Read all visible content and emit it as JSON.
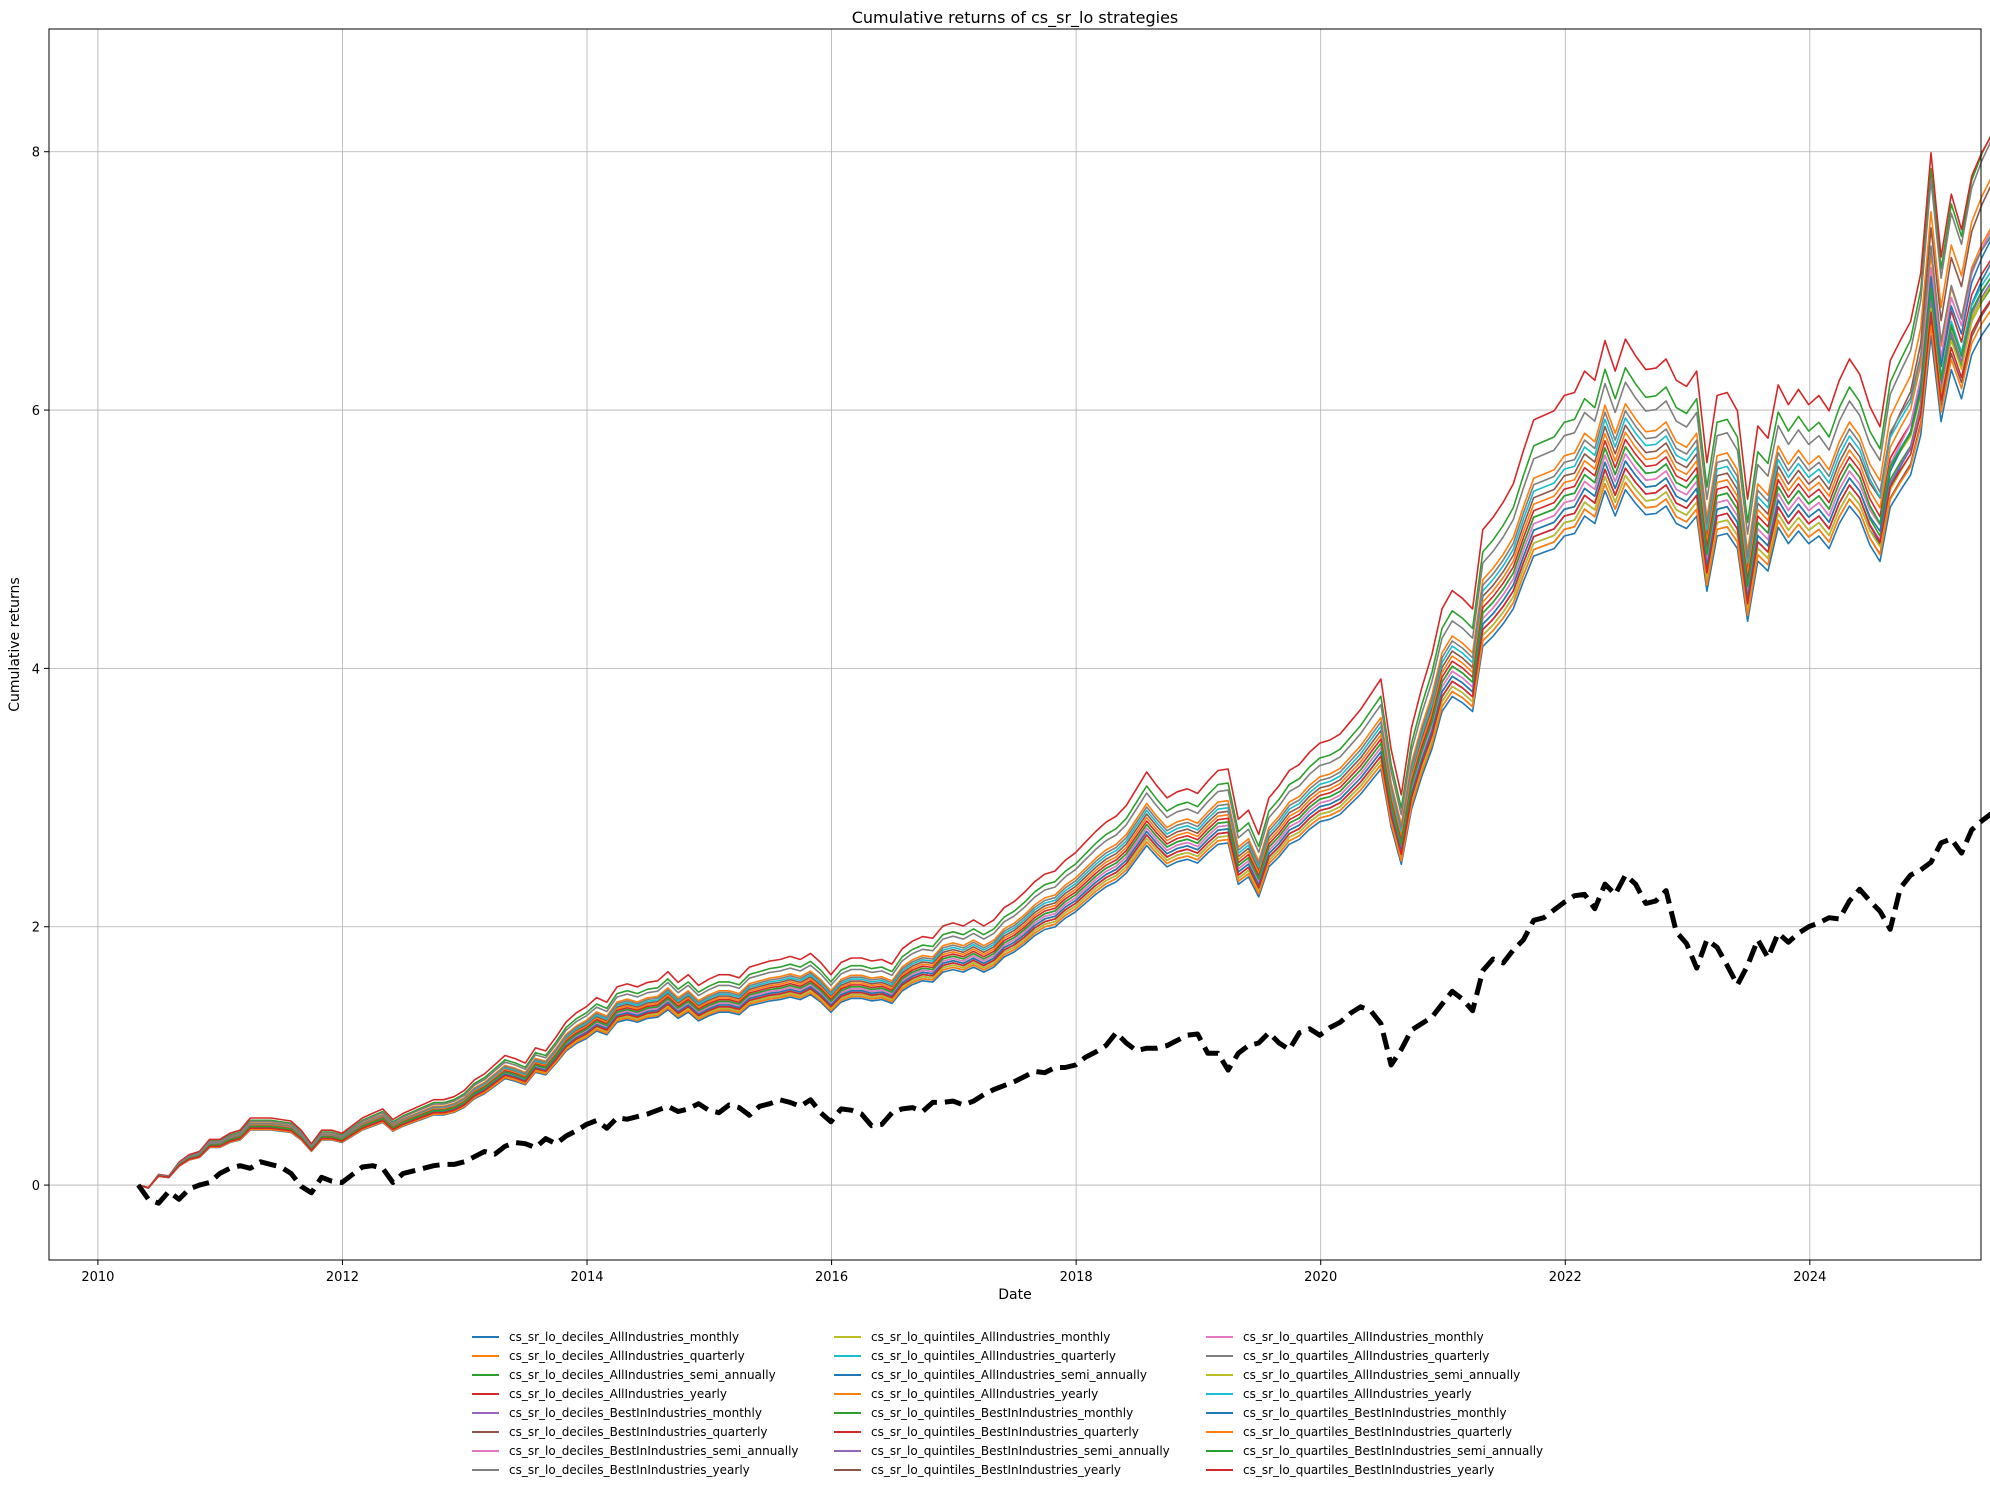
{
  "chart_data": {
    "type": "line",
    "title": "Cumulative returns of cs_sr_lo strategies",
    "xlabel": "Date",
    "ylabel": "Cumulative returns",
    "xlim": [
      2009.6,
      2025.4
    ],
    "ylim": [
      -0.58,
      8.95
    ],
    "xticks": [
      2010,
      2012,
      2014,
      2016,
      2018,
      2020,
      2022,
      2024
    ],
    "xtick_labels": [
      "2010",
      "2012",
      "2014",
      "2016",
      "2018",
      "2020",
      "2022",
      "2024"
    ],
    "yticks": [
      0,
      2,
      4,
      6,
      8
    ],
    "ytick_labels": [
      "0",
      "2",
      "4",
      "6",
      "8"
    ],
    "grid": true,
    "legend_position": "below plot, 3 columns",
    "x_start": 2010.33,
    "x_step": 0.0833,
    "base_curve": [
      0,
      -0.02,
      0.07,
      0.06,
      0.15,
      0.2,
      0.22,
      0.3,
      0.3,
      0.34,
      0.36,
      0.44,
      0.44,
      0.44,
      0.43,
      0.42,
      0.36,
      0.27,
      0.36,
      0.36,
      0.34,
      0.39,
      0.44,
      0.47,
      0.5,
      0.43,
      0.47,
      0.5,
      0.53,
      0.56,
      0.56,
      0.58,
      0.62,
      0.69,
      0.73,
      0.79,
      0.85,
      0.83,
      0.8,
      0.9,
      0.88,
      0.97,
      1.07,
      1.13,
      1.17,
      1.23,
      1.2,
      1.3,
      1.32,
      1.3,
      1.33,
      1.34,
      1.4,
      1.33,
      1.38,
      1.31,
      1.35,
      1.38,
      1.38,
      1.36,
      1.43,
      1.45,
      1.47,
      1.48,
      1.5,
      1.48,
      1.52,
      1.46,
      1.38,
      1.46,
      1.49,
      1.49,
      1.47,
      1.48,
      1.45,
      1.55,
      1.6,
      1.63,
      1.62,
      1.7,
      1.72,
      1.7,
      1.74,
      1.7,
      1.74,
      1.82,
      1.86,
      1.92,
      1.99,
      2.04,
      2.06,
      2.13,
      2.18,
      2.25,
      2.32,
      2.38,
      2.42,
      2.49,
      2.6,
      2.71,
      2.62,
      2.54,
      2.58,
      2.6,
      2.57,
      2.65,
      2.72,
      2.73,
      2.4,
      2.46,
      2.3,
      2.54,
      2.62,
      2.72,
      2.76,
      2.84,
      2.9,
      2.92,
      2.96,
      3.04,
      3.12,
      3.22,
      3.32,
      2.86,
      2.56,
      3.0,
      3.26,
      3.48,
      3.78,
      3.9,
      3.85,
      3.78,
      4.3,
      4.38,
      4.48,
      4.6,
      4.82,
      5.02,
      5.05,
      5.08,
      5.18,
      5.2,
      5.34,
      5.28,
      5.54,
      5.34,
      5.55,
      5.44,
      5.35,
      5.36,
      5.42,
      5.28,
      5.24,
      5.34,
      4.74,
      5.18,
      5.2,
      5.08,
      4.5,
      4.98,
      4.9,
      5.25,
      5.12,
      5.22,
      5.12,
      5.18,
      5.08,
      5.28,
      5.42,
      5.32,
      5.12,
      5.0,
      5.45,
      5.6,
      5.74,
      6.08,
      6.9,
      6.22,
      6.66,
      6.44,
      6.82,
      7.0,
      7.14,
      7.1,
      7.3,
      7.22,
      7.58,
      7.1,
      7.1
    ],
    "benchmark": {
      "name": "benchmark (black dashed)",
      "values": [
        0,
        -0.11,
        -0.14,
        -0.05,
        -0.11,
        -0.03,
        0.0,
        0.02,
        0.09,
        0.13,
        0.15,
        0.13,
        0.18,
        0.16,
        0.14,
        0.09,
        -0.01,
        -0.06,
        0.06,
        0.03,
        0.02,
        0.08,
        0.14,
        0.15,
        0.13,
        0.02,
        0.09,
        0.11,
        0.13,
        0.15,
        0.16,
        0.16,
        0.18,
        0.22,
        0.26,
        0.24,
        0.3,
        0.33,
        0.32,
        0.29,
        0.36,
        0.32,
        0.38,
        0.42,
        0.47,
        0.5,
        0.44,
        0.52,
        0.51,
        0.53,
        0.55,
        0.58,
        0.61,
        0.57,
        0.59,
        0.63,
        0.58,
        0.56,
        0.62,
        0.6,
        0.54,
        0.61,
        0.63,
        0.66,
        0.64,
        0.61,
        0.66,
        0.56,
        0.49,
        0.59,
        0.58,
        0.55,
        0.46,
        0.47,
        0.56,
        0.59,
        0.6,
        0.57,
        0.64,
        0.64,
        0.65,
        0.62,
        0.65,
        0.7,
        0.74,
        0.77,
        0.8,
        0.84,
        0.88,
        0.87,
        0.91,
        0.91,
        0.93,
        0.99,
        1.03,
        1.08,
        1.18,
        1.1,
        1.04,
        1.06,
        1.06,
        1.08,
        1.12,
        1.16,
        1.17,
        1.02,
        1.02,
        0.89,
        1.02,
        1.08,
        1.1,
        1.18,
        1.1,
        1.05,
        1.18,
        1.21,
        1.16,
        1.22,
        1.26,
        1.33,
        1.38,
        1.35,
        1.25,
        0.93,
        1.05,
        1.2,
        1.25,
        1.3,
        1.4,
        1.5,
        1.44,
        1.35,
        1.66,
        1.75,
        1.72,
        1.82,
        1.9,
        2.05,
        2.07,
        2.13,
        2.19,
        2.24,
        2.25,
        2.14,
        2.33,
        2.25,
        2.4,
        2.33,
        2.18,
        2.2,
        2.28,
        1.96,
        1.87,
        1.68,
        1.9,
        1.84,
        1.7,
        1.55,
        1.7,
        1.9,
        1.76,
        1.95,
        1.88,
        1.95,
        2.0,
        2.03,
        2.07,
        2.06,
        2.2,
        2.29,
        2.2,
        2.12,
        1.98,
        2.3,
        2.4,
        2.44,
        2.5,
        2.65,
        2.68,
        2.57,
        2.75,
        2.82,
        2.88,
        2.94,
        3.0,
        3.07,
        3.02,
        3.18,
        3.08
      ]
    },
    "series": [
      {
        "name": "cs_sr_lo_deciles_AllIndustries_monthly",
        "color": "#1f77b4",
        "end_value": 6.55
      },
      {
        "name": "cs_sr_lo_deciles_AllIndustries_quarterly",
        "color": "#ff7f0e",
        "end_value": 7.78
      },
      {
        "name": "cs_sr_lo_deciles_AllIndustries_semi_annually",
        "color": "#2ca02c",
        "end_value": 8.1
      },
      {
        "name": "cs_sr_lo_deciles_AllIndustries_yearly",
        "color": "#d62728",
        "end_value": 7.95
      },
      {
        "name": "cs_sr_lo_deciles_BestInIndustries_monthly",
        "color": "#9467bd",
        "end_value": 6.9
      },
      {
        "name": "cs_sr_lo_deciles_BestInIndustries_quarterly",
        "color": "#8c564b",
        "end_value": 7.8
      },
      {
        "name": "cs_sr_lo_deciles_BestInIndustries_semi_annually",
        "color": "#e377c2",
        "end_value": 7.42
      },
      {
        "name": "cs_sr_lo_deciles_BestInIndustries_yearly",
        "color": "#7f7f7f",
        "end_value": 8.1
      },
      {
        "name": "cs_sr_lo_quintiles_AllIndustries_monthly",
        "color": "#bcbd22",
        "end_value": 6.75
      },
      {
        "name": "cs_sr_lo_quintiles_AllIndustries_quarterly",
        "color": "#17becf",
        "end_value": 7.2
      },
      {
        "name": "cs_sr_lo_quintiles_AllIndustries_semi_annually",
        "color": "#1f77b4",
        "end_value": 7.15
      },
      {
        "name": "cs_sr_lo_quintiles_AllIndustries_yearly",
        "color": "#ff7f0e",
        "end_value": 7.35
      },
      {
        "name": "cs_sr_lo_quintiles_BestInIndustries_monthly",
        "color": "#2ca02c",
        "end_value": 6.8
      },
      {
        "name": "cs_sr_lo_quintiles_BestInIndustries_quarterly",
        "color": "#d62728",
        "end_value": 7.02
      },
      {
        "name": "cs_sr_lo_quintiles_BestInIndustries_semi_annually",
        "color": "#9467bd",
        "end_value": 6.96
      },
      {
        "name": "cs_sr_lo_quintiles_BestInIndustries_yearly",
        "color": "#8c564b",
        "end_value": 6.75
      },
      {
        "name": "cs_sr_lo_quartiles_AllIndustries_monthly",
        "color": "#e377c2",
        "end_value": 7.42
      },
      {
        "name": "cs_sr_lo_quartiles_AllIndustries_quarterly",
        "color": "#7f7f7f",
        "end_value": 7.15
      },
      {
        "name": "cs_sr_lo_quartiles_AllIndustries_semi_annually",
        "color": "#bcbd22",
        "end_value": 6.9
      },
      {
        "name": "cs_sr_lo_quartiles_AllIndustries_yearly",
        "color": "#17becf",
        "end_value": 6.92
      },
      {
        "name": "cs_sr_lo_quartiles_BestInIndustries_monthly",
        "color": "#1f77b4",
        "end_value": 7.35
      },
      {
        "name": "cs_sr_lo_quartiles_BestInIndustries_quarterly",
        "color": "#ff7f0e",
        "end_value": 6.65
      },
      {
        "name": "cs_sr_lo_quartiles_BestInIndustries_semi_annually",
        "color": "#2ca02c",
        "end_value": 6.85
      },
      {
        "name": "cs_sr_lo_quartiles_BestInIndustries_yearly",
        "color": "#d62728",
        "end_value": 6.7
      }
    ],
    "series_scale": [
      0.97,
      1.09,
      1.14,
      1.18,
      1.0,
      1.06,
      1.02,
      1.12,
      1.03,
      1.07,
      0.99,
      1.05,
      1.01,
      1.04,
      1.0,
      0.98,
      1.02,
      1.08,
      0.99,
      1.03,
      1.01,
      0.98,
      1.03,
      1.0
    ]
  }
}
